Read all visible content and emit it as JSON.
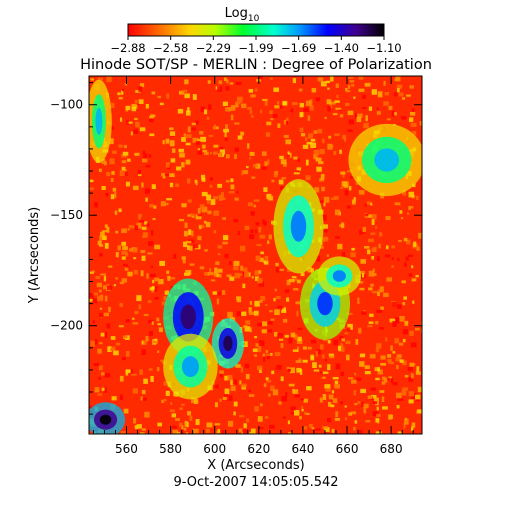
{
  "chart_data": {
    "type": "heatmap",
    "title": "Hinode SOT/SP - MERLIN : Degree of Polarization",
    "xlabel": "X (Arcseconds)",
    "ylabel": "Y (Arcseconds)",
    "date_label": "9-Oct-2007 14:05:05.542",
    "xlim": [
      543,
      694
    ],
    "ylim": [
      -249,
      -87
    ],
    "x_ticks": [
      560,
      580,
      600,
      620,
      640,
      660,
      680
    ],
    "x_tick_labels": [
      "560",
      "580",
      "600",
      "620",
      "640",
      "660",
      "680"
    ],
    "y_ticks": [
      -100,
      -150,
      -200
    ],
    "y_tick_labels": [
      "-100",
      "-150",
      "-200"
    ],
    "colorbar": {
      "label": "Log",
      "label_subscript": "10",
      "scale": "log10",
      "range": [
        -2.88,
        -1.1
      ],
      "tick_labels": [
        "-2.88",
        "-2.58",
        "-2.29",
        "-1.99",
        "-1.69",
        "-1.40",
        "-1.10"
      ],
      "colormap": [
        "#ff0000",
        "#ff6a00",
        "#ffd500",
        "#b8ff00",
        "#00ff30",
        "#00ffd0",
        "#0099ff",
        "#0000ff",
        "#400090",
        "#000000"
      ]
    },
    "background_level": -2.8,
    "background_color": "#ff2a00",
    "features": [
      {
        "name": "blue-lane",
        "x": [
          578,
          598
        ],
        "y": [
          -180,
          -212
        ],
        "level": -1.5
      },
      {
        "name": "blue-patch",
        "x": [
          600,
          612
        ],
        "y": [
          -198,
          -218
        ],
        "level": -1.45
      },
      {
        "name": "green-ring-upper",
        "x": [
          628,
          648
        ],
        "y": [
          -135,
          -175
        ],
        "level": -1.9
      },
      {
        "name": "green-blue-right",
        "x": [
          640,
          660
        ],
        "y": [
          -175,
          -205
        ],
        "level": -1.8
      },
      {
        "name": "green-lane-left",
        "x": [
          578,
          600
        ],
        "y": [
          -205,
          -232
        ],
        "level": -1.95
      },
      {
        "name": "green-top-left",
        "x": [
          543,
          552
        ],
        "y": [
          -90,
          -125
        ],
        "level": -2.0
      },
      {
        "name": "green-right-edge",
        "x": [
          662,
          694
        ],
        "y": [
          -110,
          -140
        ],
        "level": -2.0
      },
      {
        "name": "blue-bottom-left",
        "x": [
          543,
          558
        ],
        "y": [
          -236,
          -249
        ],
        "level": -1.3
      },
      {
        "name": "green-lower-right",
        "x": [
          648,
          665
        ],
        "y": [
          -170,
          -185
        ],
        "level": -1.9
      }
    ]
  }
}
